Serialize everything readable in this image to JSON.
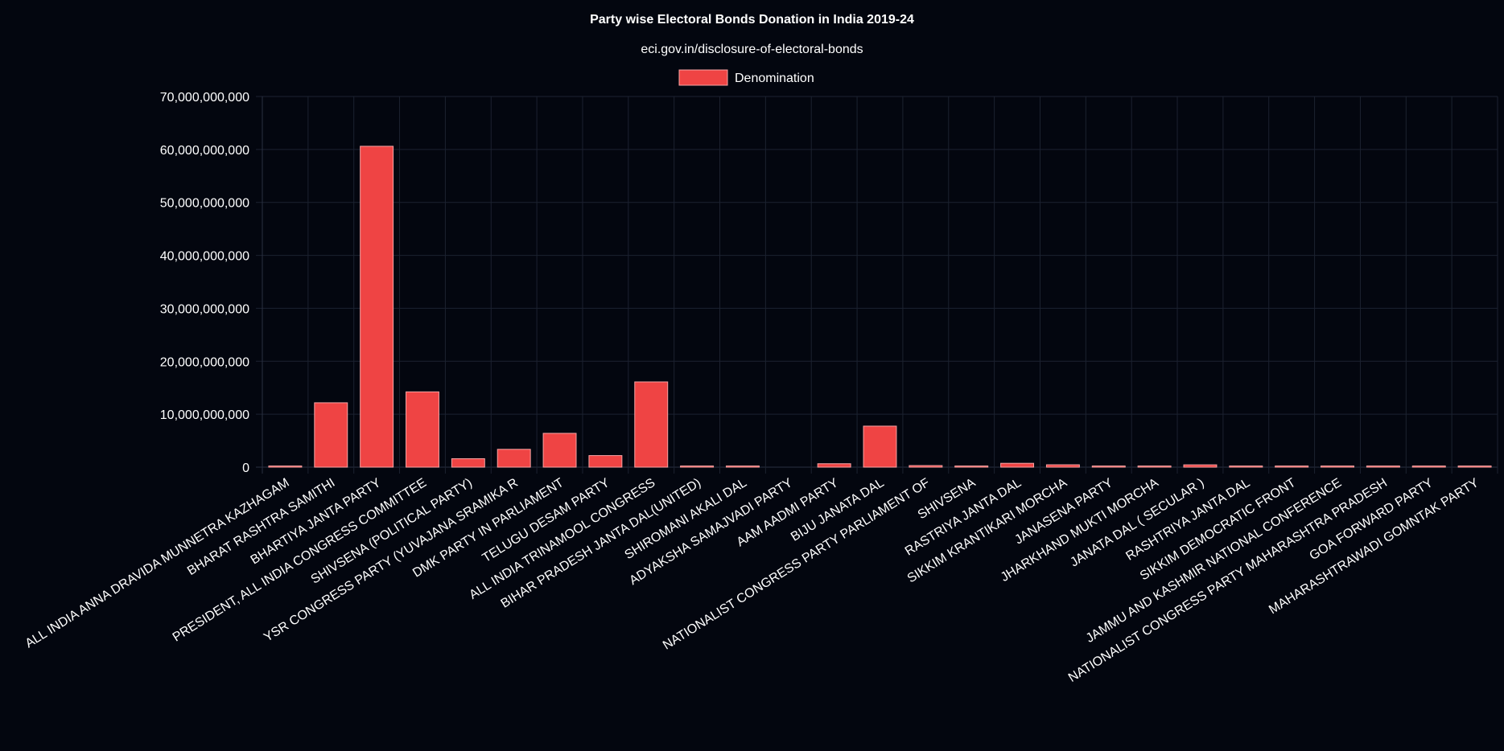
{
  "chart_data": {
    "type": "bar",
    "title": "Party wise Electoral Bonds Donation in India 2019-24",
    "subtitle": "eci.gov.in/disclosure-of-electoral-bonds",
    "legend": {
      "position": "top",
      "label": "Denomination",
      "color": "#ef4444"
    },
    "xlabel": "",
    "ylabel": "",
    "ylim": [
      0,
      70000000000
    ],
    "yticks": [
      "0",
      "10,000,000,000",
      "20,000,000,000",
      "30,000,000,000",
      "40,000,000,000",
      "50,000,000,000",
      "60,000,000,000",
      "70,000,000,000"
    ],
    "grid": true,
    "categories": [
      "ALL INDIA ANNA DRAVIDA MUNNETRA KAZHAGAM",
      "BHARAT RASHTRA SAMITHI",
      "BHARTIYA JANTA PARTY",
      "PRESIDENT, ALL INDIA CONGRESS COMMITTEE",
      "SHIVSENA (POLITICAL PARTY)",
      "YSR CONGRESS PARTY (YUVAJANA SRAMIKA R",
      "DMK PARTY IN PARLIAMENT",
      "TELUGU DESAM PARTY",
      "ALL INDIA TRINAMOOL CONGRESS",
      "BIHAR PRADESH JANTA DAL(UNITED)",
      "SHIROMANI AKALI DAL",
      "ADYAKSHA SAMAJVADI PARTY",
      "AAM AADMI PARTY",
      "BIJU JANATA DAL",
      "NATIONALIST CONGRESS PARTY PARLIAMENT OF",
      "SHIVSENA",
      "RASTRIYA JANTA DAL",
      "SIKKIM KRANTIKARI MORCHA",
      "JANASENA PARTY",
      "JHARKHAND MUKTI MORCHA",
      "JANATA DAL ( SECULAR )",
      "RASHTRIYA JANTA DAL",
      "SIKKIM DEMOCRATIC FRONT",
      "JAMMU AND KASHMIR NATIONAL CONFERENCE",
      "NATIONALIST CONGRESS PARTY MAHARASHTRA PRADESH",
      "GOA FORWARD PARTY",
      "MAHARASHTRAWADI GOMNTAK PARTY"
    ],
    "series": [
      {
        "name": "Denomination",
        "color": "#ef4444",
        "values": [
          60000000,
          12160000000,
          60600000000,
          14220000000,
          1600000000,
          3370000000,
          6390000000,
          2190000000,
          16100000000,
          10000000,
          70000000,
          0,
          650000000,
          7750000000,
          300000000,
          10000000,
          730000000,
          450000000,
          210000000,
          10000000,
          440000000,
          10000000,
          10000000,
          10000000,
          10000000,
          10000000,
          10000000
        ]
      }
    ]
  }
}
